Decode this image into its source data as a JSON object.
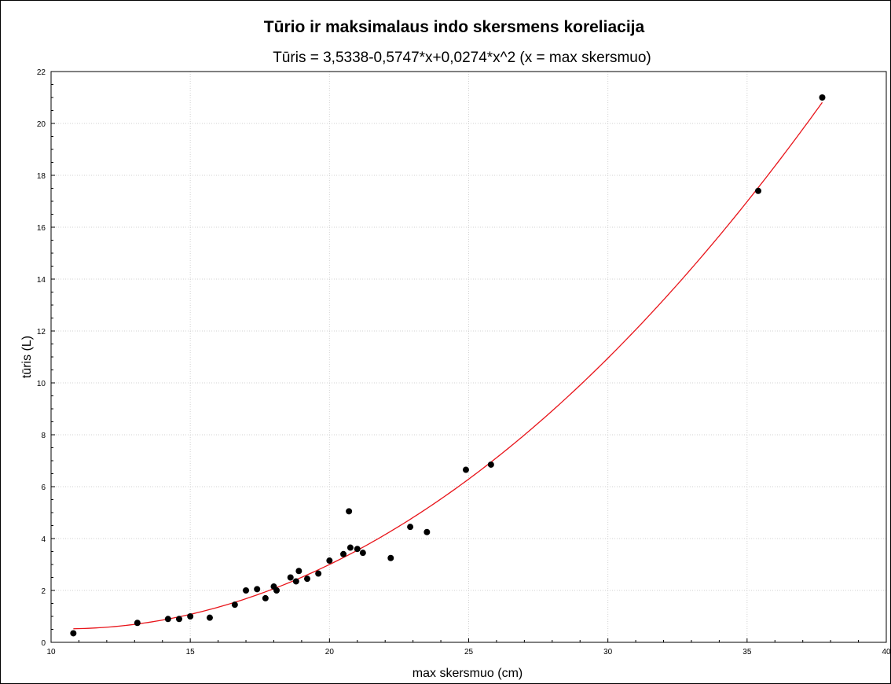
{
  "chart_data": {
    "type": "scatter",
    "title": "Tūrio ir maksimalaus indo skersmens koreliacija",
    "subtitle": "Tūris = 3,5338-0,5747*x+0,0274*x^2   (x = max skersmuo)",
    "xlabel": "max skersmuo (cm)",
    "ylabel": "tūris (L)",
    "xlim": [
      10,
      40
    ],
    "ylim": [
      0,
      22
    ],
    "x_ticks": [
      10,
      15,
      20,
      25,
      30,
      35,
      40
    ],
    "y_ticks": [
      0,
      2,
      4,
      6,
      8,
      10,
      12,
      14,
      16,
      18,
      20,
      22
    ],
    "grid": true,
    "fit": {
      "type": "quadratic",
      "coefficients": [
        3.5338,
        -0.5747,
        0.0274
      ],
      "x_range": [
        10.8,
        37.7
      ],
      "color": "#e8141a"
    },
    "marker_color": "#000000",
    "points": [
      {
        "x": 10.8,
        "y": 0.35
      },
      {
        "x": 13.1,
        "y": 0.75
      },
      {
        "x": 14.2,
        "y": 0.9
      },
      {
        "x": 14.6,
        "y": 0.9
      },
      {
        "x": 15.0,
        "y": 1.0
      },
      {
        "x": 15.7,
        "y": 0.95
      },
      {
        "x": 16.6,
        "y": 1.45
      },
      {
        "x": 17.0,
        "y": 2.0
      },
      {
        "x": 17.4,
        "y": 2.05
      },
      {
        "x": 17.7,
        "y": 1.7
      },
      {
        "x": 18.0,
        "y": 2.15
      },
      {
        "x": 18.1,
        "y": 2.0
      },
      {
        "x": 18.6,
        "y": 2.5
      },
      {
        "x": 18.8,
        "y": 2.35
      },
      {
        "x": 18.9,
        "y": 2.75
      },
      {
        "x": 19.2,
        "y": 2.45
      },
      {
        "x": 19.6,
        "y": 2.65
      },
      {
        "x": 20.0,
        "y": 3.15
      },
      {
        "x": 20.5,
        "y": 3.4
      },
      {
        "x": 20.7,
        "y": 5.05
      },
      {
        "x": 20.75,
        "y": 3.65
      },
      {
        "x": 21.0,
        "y": 3.6
      },
      {
        "x": 21.2,
        "y": 3.45
      },
      {
        "x": 22.2,
        "y": 3.25
      },
      {
        "x": 22.9,
        "y": 4.45
      },
      {
        "x": 23.5,
        "y": 4.25
      },
      {
        "x": 24.9,
        "y": 6.65
      },
      {
        "x": 25.8,
        "y": 6.85
      },
      {
        "x": 35.4,
        "y": 17.4
      },
      {
        "x": 37.7,
        "y": 21.0
      }
    ]
  }
}
